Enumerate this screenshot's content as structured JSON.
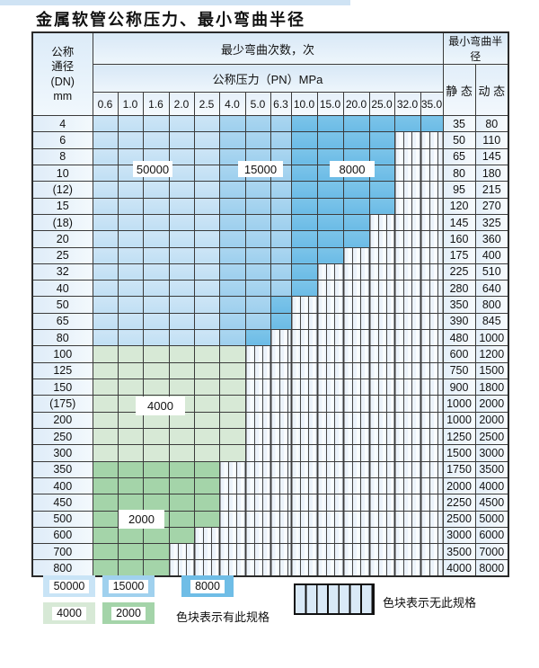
{
  "page": {
    "title": "金属软管公称压力、最小弯曲半径"
  },
  "table": {
    "header": {
      "dn_header": "公称\n通径\n(DN)\nmm",
      "bend_times": "最少弯曲次数，次",
      "pressure": "公称压力（PN）MPa",
      "min_radius": "最小弯曲半径",
      "static_label": "静 态",
      "dynamic_label": "动 态",
      "pressures": [
        "0.6",
        "1.0",
        "1.6",
        "2.0",
        "2.5",
        "4.0",
        "5.0",
        "6.3",
        "10.0",
        "15.0",
        "20.0",
        "25.0",
        "32.0",
        "35.0"
      ]
    },
    "rows": [
      {
        "dn": "4",
        "st": "35",
        "dy": "80",
        "last": 13,
        "mid": 5,
        "dark": 8,
        "pal": "b"
      },
      {
        "dn": "6",
        "st": "50",
        "dy": "110",
        "last": 11,
        "mid": 5,
        "dark": 8,
        "pal": "b"
      },
      {
        "dn": "8",
        "st": "65",
        "dy": "145",
        "last": 11,
        "mid": 5,
        "dark": 8,
        "pal": "b"
      },
      {
        "dn": "10",
        "st": "80",
        "dy": "180",
        "last": 11,
        "mid": 5,
        "dark": 8,
        "pal": "b"
      },
      {
        "dn": "(12)",
        "st": "95",
        "dy": "215",
        "last": 11,
        "mid": 5,
        "dark": 8,
        "pal": "b"
      },
      {
        "dn": "15",
        "st": "120",
        "dy": "270",
        "last": 11,
        "mid": 5,
        "dark": 8,
        "pal": "b"
      },
      {
        "dn": "(18)",
        "st": "145",
        "dy": "325",
        "last": 10,
        "mid": 5,
        "dark": 8,
        "pal": "b"
      },
      {
        "dn": "20",
        "st": "160",
        "dy": "360",
        "last": 10,
        "mid": 5,
        "dark": 8,
        "pal": "b"
      },
      {
        "dn": "25",
        "st": "175",
        "dy": "400",
        "last": 9,
        "mid": 5,
        "dark": 8,
        "pal": "b"
      },
      {
        "dn": "32",
        "st": "225",
        "dy": "510",
        "last": 8,
        "mid": 5,
        "dark": 8,
        "pal": "b"
      },
      {
        "dn": "40",
        "st": "280",
        "dy": "640",
        "last": 8,
        "mid": 5,
        "dark": 8,
        "pal": "b"
      },
      {
        "dn": "50",
        "st": "350",
        "dy": "800",
        "last": 7,
        "mid": 5,
        "dark": 7,
        "pal": "b"
      },
      {
        "dn": "65",
        "st": "390",
        "dy": "845",
        "last": 7,
        "mid": 5,
        "dark": 7,
        "pal": "b"
      },
      {
        "dn": "80",
        "st": "480",
        "dy": "1000",
        "last": 6,
        "mid": 5,
        "dark": 6,
        "pal": "b"
      },
      {
        "dn": "100",
        "st": "600",
        "dy": "1200",
        "last": 5,
        "pal": "g4"
      },
      {
        "dn": "125",
        "st": "750",
        "dy": "1500",
        "last": 5,
        "pal": "g4"
      },
      {
        "dn": "150",
        "st": "900",
        "dy": "1800",
        "last": 5,
        "pal": "g4"
      },
      {
        "dn": "(175)",
        "st": "1000",
        "dy": "2000",
        "last": 5,
        "pal": "g4"
      },
      {
        "dn": "200",
        "st": "1000",
        "dy": "2000",
        "last": 5,
        "pal": "g4"
      },
      {
        "dn": "250",
        "st": "1250",
        "dy": "2500",
        "last": 5,
        "pal": "g4"
      },
      {
        "dn": "300",
        "st": "1500",
        "dy": "3000",
        "last": 5,
        "pal": "g4"
      },
      {
        "dn": "350",
        "st": "1750",
        "dy": "3500",
        "last": 4,
        "pal": "g2"
      },
      {
        "dn": "400",
        "st": "2000",
        "dy": "4000",
        "last": 4,
        "pal": "g2"
      },
      {
        "dn": "450",
        "st": "2250",
        "dy": "4500",
        "last": 4,
        "pal": "g2"
      },
      {
        "dn": "500",
        "st": "2500",
        "dy": "5000",
        "last": 4,
        "pal": "g2"
      },
      {
        "dn": "600",
        "st": "3000",
        "dy": "6000",
        "last": 3,
        "pal": "g2"
      },
      {
        "dn": "700",
        "st": "3500",
        "dy": "7000",
        "last": 2,
        "pal": "g2"
      },
      {
        "dn": "800",
        "st": "4000",
        "dy": "8000",
        "last": 2,
        "pal": "g2"
      }
    ]
  },
  "overlays": {
    "l50000": "50000",
    "l15000": "15000",
    "l8000": "8000",
    "l4000": "4000",
    "l2000": "2000"
  },
  "legend": {
    "b50000": "50000",
    "b15000": "15000",
    "b8000": "8000",
    "b4000": "4000",
    "b2000": "2000",
    "has_spec_text": "色块表示有此规格",
    "no_spec_text": "色块表示无此规格"
  },
  "colors": {
    "cycles_50000": "#c9e4f6",
    "cycles_15000": "#a0d1ee",
    "cycles_8000": "#6fbde6",
    "cycles_4000": "#d7e9d6",
    "cycles_2000": "#a4d4a9",
    "header_blue": "#d8e8f6",
    "grid_line": "#3b3b3b"
  }
}
